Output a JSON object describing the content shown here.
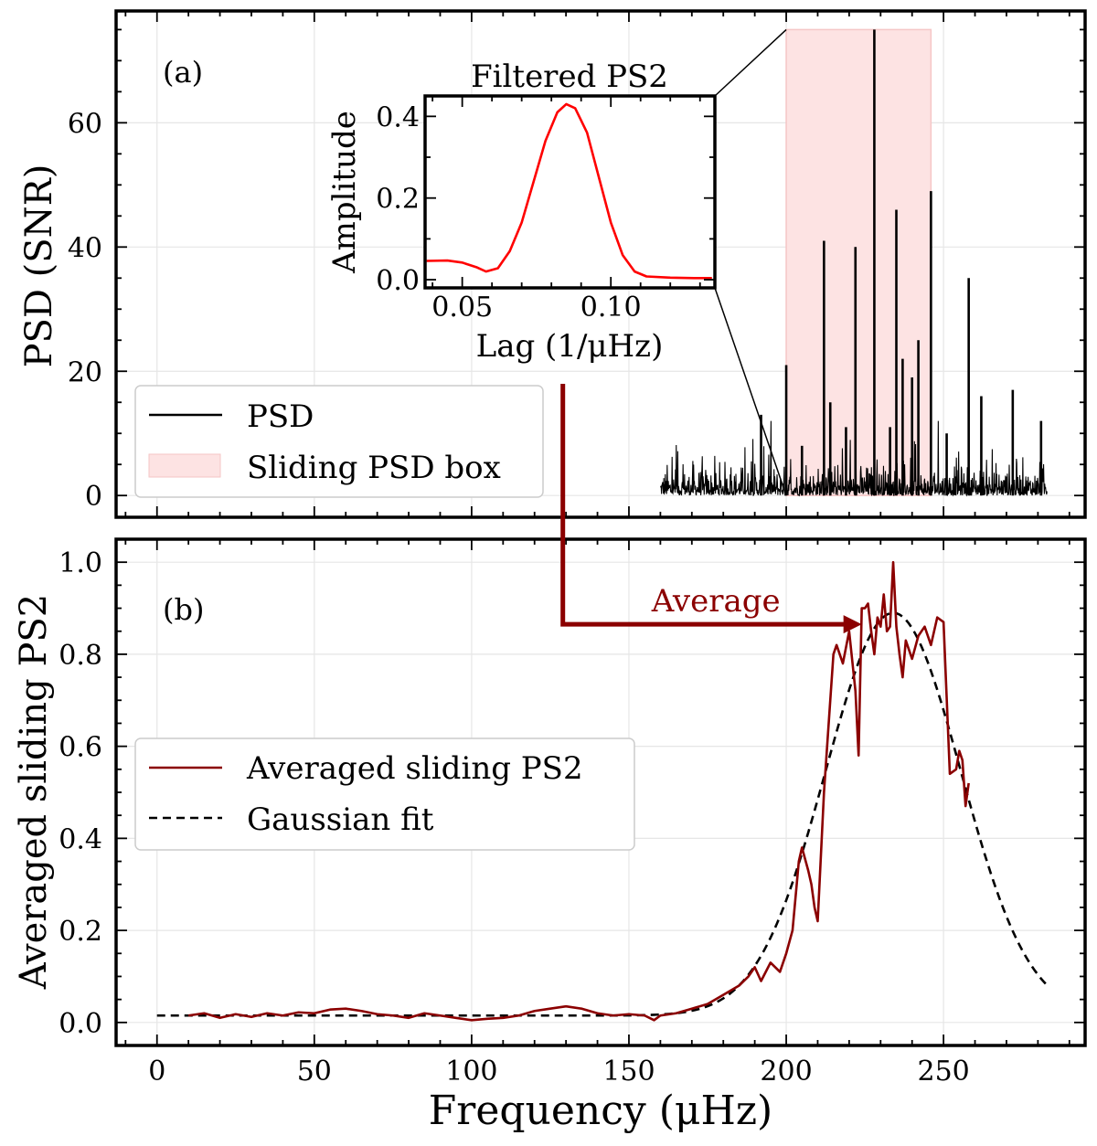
{
  "figure": {
    "xlabel": "Frequency (μHz)",
    "colors": {
      "psd": "#000000",
      "box_fill": "#fde3e3",
      "box_edge": "#f5c6c6",
      "ps2": "#ff0000",
      "averaged": "#8b0000",
      "fit": "#000000",
      "grid": "#e6e6e6"
    }
  },
  "chart_data": [
    {
      "id": "a",
      "type": "line",
      "panel_label": "(a)",
      "ylabel": "PSD (SNR)",
      "xlim": [
        -13,
        295
      ],
      "ylim": [
        -3.5,
        78
      ],
      "xticks": [
        0,
        50,
        100,
        150,
        200,
        250
      ],
      "yticks": [
        0,
        20,
        40,
        60
      ],
      "grid": true,
      "legend_position": "lower-left",
      "legend": [
        "PSD",
        "Sliding PSD box"
      ],
      "sliding_box": {
        "x_start": 200,
        "x_end": 246,
        "y_top": 75
      },
      "series": [
        {
          "name": "PSD",
          "type": "spectrum",
          "x_range": [
            160,
            283
          ],
          "noise_level": 2.5,
          "peaks": [
            {
              "x": 192,
              "y": 13
            },
            {
              "x": 200,
              "y": 21
            },
            {
              "x": 205,
              "y": 8
            },
            {
              "x": 212,
              "y": 41
            },
            {
              "x": 214,
              "y": 15
            },
            {
              "x": 219,
              "y": 11
            },
            {
              "x": 222,
              "y": 40
            },
            {
              "x": 228,
              "y": 75
            },
            {
              "x": 233,
              "y": 11
            },
            {
              "x": 235,
              "y": 46
            },
            {
              "x": 237,
              "y": 22
            },
            {
              "x": 240,
              "y": 19
            },
            {
              "x": 242,
              "y": 25
            },
            {
              "x": 246,
              "y": 49
            },
            {
              "x": 251,
              "y": 10
            },
            {
              "x": 258,
              "y": 35
            },
            {
              "x": 262,
              "y": 16
            },
            {
              "x": 272,
              "y": 17
            },
            {
              "x": 281,
              "y": 12
            }
          ]
        }
      ]
    },
    {
      "id": "inset",
      "type": "line",
      "title": "Filtered PS2",
      "xlabel": "Lag (1/μHz)",
      "ylabel": "Amplitude",
      "xlim": [
        0.0375,
        0.135
      ],
      "ylim": [
        -0.02,
        0.45
      ],
      "xticks": [
        0.05,
        0.1
      ],
      "xtick_labels": [
        "0.05",
        "0.10"
      ],
      "yticks": [
        0,
        0.2,
        0.4
      ],
      "ytick_labels": [
        "0.0",
        "0.2",
        "0.4"
      ],
      "grid": false,
      "series": [
        {
          "name": "Filtered PS2",
          "x": [
            0.038,
            0.045,
            0.05,
            0.055,
            0.058,
            0.062,
            0.066,
            0.07,
            0.074,
            0.078,
            0.082,
            0.085,
            0.088,
            0.092,
            0.096,
            0.1,
            0.104,
            0.108,
            0.112,
            0.12,
            0.128,
            0.134
          ],
          "y": [
            0.046,
            0.047,
            0.042,
            0.03,
            0.02,
            0.028,
            0.07,
            0.14,
            0.24,
            0.34,
            0.41,
            0.43,
            0.42,
            0.36,
            0.25,
            0.14,
            0.06,
            0.02,
            0.008,
            0.005,
            0.004,
            0.004
          ]
        }
      ]
    },
    {
      "id": "b",
      "type": "line",
      "panel_label": "(b)",
      "ylabel": "Averaged sliding PS2",
      "xlabel": "Frequency (μHz)",
      "xlim": [
        -13,
        295
      ],
      "ylim": [
        -0.05,
        1.05
      ],
      "xticks": [
        0,
        50,
        100,
        150,
        200,
        250
      ],
      "yticks": [
        0,
        0.2,
        0.4,
        0.6,
        0.8,
        1.0
      ],
      "ytick_labels": [
        "0.0",
        "0.2",
        "0.4",
        "0.6",
        "0.8",
        "1.0"
      ],
      "grid": true,
      "legend_position": "center-left",
      "legend": [
        "Averaged sliding PS2",
        "Gaussian fit"
      ],
      "annotation": {
        "text": "Average",
        "from_x": 129,
        "to_x": 224,
        "y": 0.865
      },
      "series": [
        {
          "name": "Averaged sliding PS2",
          "x": [
            10,
            15,
            20,
            25,
            30,
            35,
            40,
            45,
            50,
            55,
            60,
            65,
            70,
            75,
            80,
            85,
            90,
            95,
            100,
            105,
            110,
            115,
            120,
            125,
            130,
            135,
            140,
            145,
            150,
            155,
            158,
            160,
            165,
            170,
            175,
            180,
            185,
            188,
            190,
            192,
            195,
            198,
            200,
            202,
            204,
            205,
            207,
            208,
            209,
            210,
            212,
            214,
            215,
            216,
            218,
            220,
            222,
            223,
            224,
            225,
            226,
            227,
            228,
            229,
            230,
            231,
            232,
            233,
            234,
            235,
            236,
            237,
            238,
            240,
            242,
            244,
            246,
            248,
            250,
            252,
            254,
            255,
            256,
            257,
            258
          ],
          "y": [
            0.015,
            0.02,
            0.01,
            0.018,
            0.012,
            0.02,
            0.015,
            0.022,
            0.02,
            0.028,
            0.03,
            0.025,
            0.018,
            0.015,
            0.01,
            0.02,
            0.015,
            0.01,
            0.005,
            0.008,
            0.01,
            0.015,
            0.025,
            0.03,
            0.035,
            0.03,
            0.02,
            0.015,
            0.018,
            0.015,
            0.005,
            0.015,
            0.02,
            0.03,
            0.04,
            0.06,
            0.08,
            0.1,
            0.12,
            0.09,
            0.13,
            0.11,
            0.15,
            0.2,
            0.35,
            0.38,
            0.33,
            0.3,
            0.25,
            0.22,
            0.5,
            0.7,
            0.8,
            0.82,
            0.78,
            0.85,
            0.72,
            0.58,
            0.9,
            0.9,
            0.91,
            0.85,
            0.8,
            0.88,
            0.86,
            0.93,
            0.85,
            0.86,
            1.0,
            0.86,
            0.8,
            0.75,
            0.83,
            0.79,
            0.84,
            0.86,
            0.82,
            0.88,
            0.87,
            0.54,
            0.55,
            0.59,
            0.57,
            0.47,
            0.52
          ]
        },
        {
          "name": "Gaussian fit",
          "style": "dashed",
          "gaussian": {
            "baseline": 0.015,
            "amplitude": 0.875,
            "center": 234,
            "sigma": 21.5
          },
          "x_range": [
            0,
            283
          ]
        }
      ]
    }
  ]
}
